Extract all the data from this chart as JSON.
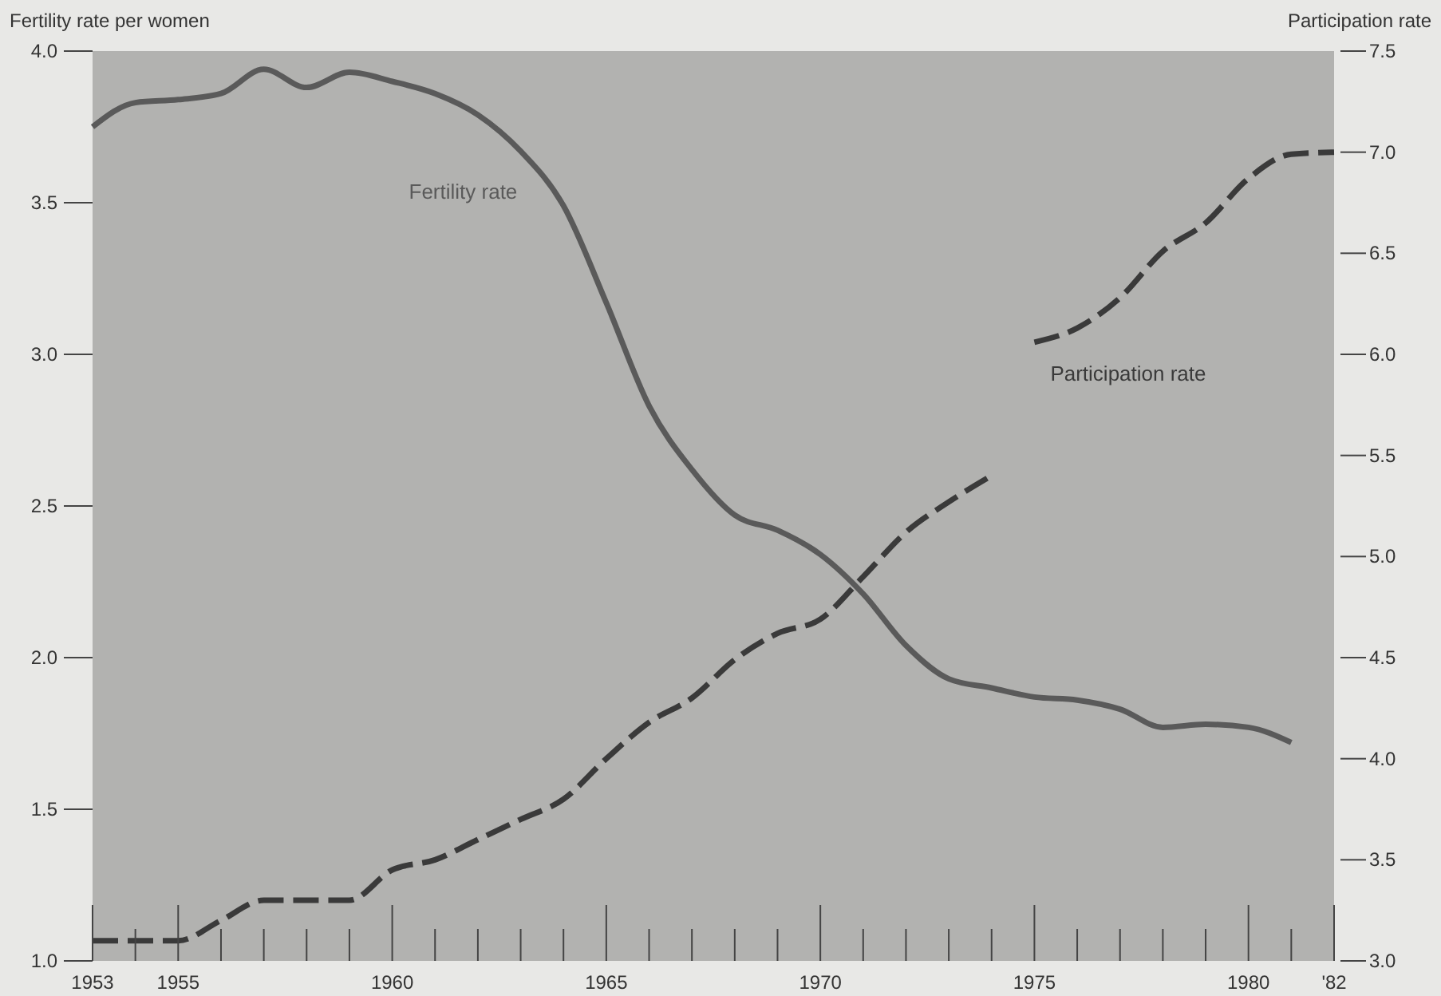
{
  "chart_data": {
    "type": "line",
    "ylabel": "Fertility rate per women",
    "y2label": "Participation rate",
    "xlim": [
      1953,
      1982
    ],
    "xticks": [
      1953,
      1955,
      1960,
      1965,
      1970,
      1975,
      1980,
      {
        "value": 1982,
        "label": "'82"
      }
    ],
    "ylim": [
      1.0,
      4.0
    ],
    "yticks": [
      {
        "value": 1.0,
        "label": "1.0"
      },
      1.5,
      {
        "value": 2.0,
        "label": "2.0"
      },
      2.5,
      {
        "value": 3.0,
        "label": "3.0"
      },
      3.5,
      {
        "value": 4.0,
        "label": "4.0"
      }
    ],
    "y2lim": [
      3.0,
      7.5
    ],
    "y2ticks": [
      {
        "value": 3.0,
        "label": "3.0"
      },
      3.5,
      {
        "value": 4.0,
        "label": "4.0"
      },
      4.5,
      {
        "value": 5.0,
        "label": "5.0"
      },
      5.5,
      {
        "value": 6.0,
        "label": "6.0"
      },
      6.5,
      {
        "value": 7.0,
        "label": "7.0"
      },
      7.5
    ],
    "grid": false,
    "series": [
      {
        "name": "Fertility rate",
        "color": "#5a5a5a",
        "line_style": "solid",
        "x": [
          1953,
          1954,
          1955,
          1956,
          1957,
          1958,
          1959,
          1960,
          1961,
          1962,
          1963,
          1964,
          1965,
          1966,
          1967,
          1968,
          1969,
          1970,
          1971,
          1972,
          1973,
          1974,
          1975,
          1976,
          1977,
          1978,
          1979,
          1980,
          1981
        ],
        "values": [
          3.75,
          3.83,
          3.84,
          3.86,
          3.94,
          3.88,
          3.93,
          3.9,
          3.86,
          3.79,
          3.67,
          3.49,
          3.17,
          2.83,
          2.62,
          2.47,
          2.42,
          2.34,
          2.21,
          2.04,
          1.93,
          1.9,
          1.87,
          1.86,
          1.83,
          1.77,
          1.78,
          1.77,
          1.72
        ]
      },
      {
        "name": "Participation rate",
        "color": "#3a3a3a",
        "line_style": "dashed",
        "axis": "y2",
        "x": [
          1953,
          1954,
          1955,
          1956,
          1957,
          1958,
          1959,
          1960,
          1961,
          1962,
          1963,
          1964,
          1965,
          1966,
          1967,
          1968,
          1969,
          1970,
          1971,
          1972,
          1973,
          1974,
          1974.5,
          1975,
          1976,
          1977,
          1978,
          1979,
          1980,
          1981,
          1982
        ],
        "values": [
          3.1,
          3.1,
          3.1,
          3.2,
          3.3,
          3.3,
          3.3,
          3.45,
          3.5,
          3.6,
          3.7,
          3.8,
          4.0,
          4.18,
          4.3,
          4.49,
          4.62,
          4.69,
          4.9,
          5.12,
          5.27,
          5.4,
          null,
          6.06,
          6.13,
          6.28,
          6.51,
          6.65,
          6.87,
          6.99,
          7.0
        ]
      }
    ]
  }
}
